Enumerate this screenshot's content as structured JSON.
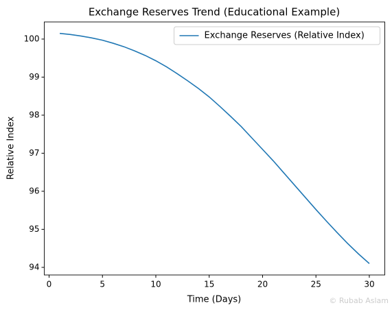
{
  "chart_data": {
    "type": "line",
    "title": "Exchange Reserves Trend (Educational Example)",
    "x_label": "Time (Days)",
    "y_label": "Relative Index",
    "x": [
      1,
      2,
      3,
      4,
      5,
      6,
      7,
      8,
      9,
      10,
      11,
      12,
      13,
      14,
      15,
      16,
      17,
      18,
      19,
      20,
      21,
      22,
      23,
      24,
      25,
      26,
      27,
      28,
      29,
      30
    ],
    "series": [
      {
        "name": "Exchange Reserves (Relative Index)",
        "color": "#1f77b4",
        "values": [
          100.15,
          100.12,
          100.08,
          100.03,
          99.97,
          99.89,
          99.8,
          99.69,
          99.57,
          99.43,
          99.27,
          99.09,
          98.9,
          98.7,
          98.48,
          98.23,
          97.97,
          97.7,
          97.4,
          97.1,
          96.8,
          96.48,
          96.16,
          95.84,
          95.52,
          95.21,
          94.91,
          94.62,
          94.35,
          94.1
        ]
      }
    ],
    "xlim": [
      -0.45,
      31.45
    ],
    "xticks": [
      0,
      5,
      10,
      15,
      20,
      25,
      30
    ],
    "ylim": [
      93.8,
      100.45
    ],
    "yticks": [
      94,
      95,
      96,
      97,
      98,
      99,
      100
    ],
    "grid": false,
    "legend": "upper right"
  },
  "watermark": "© Rubab Aslam"
}
